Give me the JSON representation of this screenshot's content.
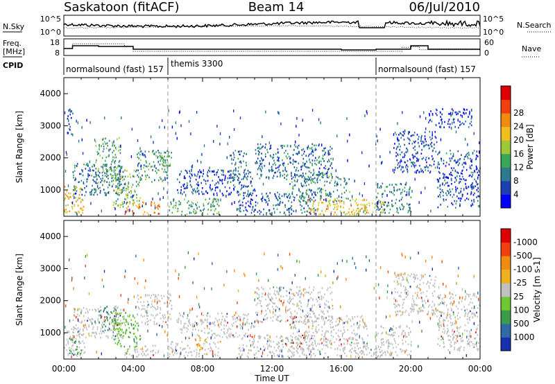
{
  "header": {
    "station": "Saskatoon (fitACF)",
    "beam": "Beam 14",
    "date": "06/Jul/2010"
  },
  "top_panels": {
    "nsky_label": "N.Sky",
    "nsearch_label": "N.Search",
    "nsky_ticks": [
      "10^5",
      "10^0"
    ],
    "nsearch_ticks": [
      "10^5",
      "10^0"
    ],
    "freq_label_1": "Freq.",
    "freq_label_2": "[MHz]",
    "freq_ticks": [
      "18",
      "8"
    ],
    "nave_label": "Nave",
    "nave_ticks": [
      "60",
      "0"
    ],
    "cpid_label": "CPID",
    "cpid_segments": [
      {
        "label": "normalsound (fast) 157",
        "start_hour": 0
      },
      {
        "label": "themis 3300",
        "start_hour": 6
      },
      {
        "label": "normalsound (fast) 157",
        "start_hour": 18
      }
    ],
    "freq_series": [
      [
        0,
        13
      ],
      [
        0.5,
        15
      ],
      [
        2,
        14.5
      ],
      [
        4,
        12.5
      ],
      [
        10,
        12.5
      ],
      [
        16,
        12
      ],
      [
        18,
        12.5
      ],
      [
        20,
        15
      ],
      [
        21,
        12.5
      ],
      [
        24,
        12.5
      ]
    ],
    "nave_series": [
      [
        0,
        30
      ],
      [
        0.5,
        50
      ],
      [
        3.5,
        40
      ],
      [
        4,
        18
      ],
      [
        18,
        18
      ],
      [
        19.5,
        35
      ],
      [
        20,
        38
      ],
      [
        20.5,
        25
      ],
      [
        24,
        25
      ]
    ]
  },
  "chart_data": [
    {
      "type": "heatmap",
      "name": "power",
      "ylabel": "Slant Range [km]",
      "xlabel": "Time UT",
      "xlim": [
        0,
        24
      ],
      "ylim": [
        180,
        4500
      ],
      "x_ticks": [
        "00:00",
        "04:00",
        "08:00",
        "12:00",
        "16:00",
        "20:00",
        "00:00"
      ],
      "y_ticks": [
        1000,
        2000,
        3000,
        4000
      ],
      "colorbar": {
        "label": "Power [dB]",
        "ticks": [
          4,
          8,
          12,
          16,
          20,
          24,
          28
        ],
        "colors": [
          "#0000ff",
          "#1c3fb4",
          "#2c7a8c",
          "#3aa65a",
          "#9ec83a",
          "#f0c020",
          "#f08c10",
          "#f04010",
          "#e00000"
        ]
      },
      "regions": [
        {
          "t": [
            0,
            1.2
          ],
          "r": [
            250,
            1100
          ],
          "v": 22
        },
        {
          "t": [
            0.1,
            0.5
          ],
          "r": [
            2600,
            3500
          ],
          "v": 8
        },
        {
          "t": [
            0.5,
            3.5
          ],
          "r": [
            800,
            1800
          ],
          "v": 10
        },
        {
          "t": [
            1.8,
            3.3
          ],
          "r": [
            1200,
            2600
          ],
          "v": 14
        },
        {
          "t": [
            2.8,
            4.4
          ],
          "r": [
            400,
            1600
          ],
          "v": 16
        },
        {
          "t": [
            3.5,
            5.5
          ],
          "r": [
            200,
            600
          ],
          "v": 25
        },
        {
          "t": [
            4.2,
            6.0
          ],
          "r": [
            1200,
            2200
          ],
          "v": 12
        },
        {
          "t": [
            5.2,
            6.2
          ],
          "r": [
            1700,
            2200
          ],
          "v": 14
        },
        {
          "t": [
            6.0,
            9.0
          ],
          "r": [
            200,
            700
          ],
          "v": 14
        },
        {
          "t": [
            6.5,
            11.0
          ],
          "r": [
            800,
            1600
          ],
          "v": 8
        },
        {
          "t": [
            9.5,
            10.5
          ],
          "r": [
            1300,
            2200
          ],
          "v": 10
        },
        {
          "t": [
            10.0,
            14.5
          ],
          "r": [
            200,
            900
          ],
          "v": 9
        },
        {
          "t": [
            11.0,
            15.5
          ],
          "r": [
            1300,
            2400
          ],
          "v": 10
        },
        {
          "t": [
            13.0,
            16.5
          ],
          "r": [
            600,
            1500
          ],
          "v": 12
        },
        {
          "t": [
            14.0,
            17.5
          ],
          "r": [
            200,
            700
          ],
          "v": 22
        },
        {
          "t": [
            16.5,
            18.5
          ],
          "r": [
            200,
            600
          ],
          "v": 20
        },
        {
          "t": [
            18.0,
            20.0
          ],
          "r": [
            250,
            1200
          ],
          "v": 11
        },
        {
          "t": [
            19.0,
            21.5
          ],
          "r": [
            1500,
            2800
          ],
          "v": 8
        },
        {
          "t": [
            21.5,
            24.0
          ],
          "r": [
            400,
            2200
          ],
          "v": 8
        },
        {
          "t": [
            21.0,
            23.5
          ],
          "r": [
            2900,
            3500
          ],
          "v": 6
        }
      ]
    },
    {
      "type": "heatmap",
      "name": "velocity",
      "ylabel": "Slant Range [km]",
      "xlabel": "Time UT",
      "xlim": [
        0,
        24
      ],
      "ylim": [
        180,
        4500
      ],
      "x_ticks": [
        "00:00",
        "04:00",
        "08:00",
        "12:00",
        "16:00",
        "20:00",
        "00:00"
      ],
      "y_ticks": [
        1000,
        2000,
        3000,
        4000
      ],
      "colorbar": {
        "label": "Velocity [m s-1]",
        "ticks": [
          "1000",
          "500",
          "100",
          "25",
          "-25",
          "-100",
          "-500",
          "-1000"
        ],
        "colors": [
          "#1a2fb0",
          "#2f6aa8",
          "#3a9b4a",
          "#6ec832",
          "#c0c0c0",
          "#f0b020",
          "#f08c10",
          "#f04010",
          "#e00000"
        ]
      },
      "regions": [
        {
          "t": [
            0,
            1.2
          ],
          "r": [
            250,
            1100
          ],
          "v": 0
        },
        {
          "t": [
            0.3,
            1.0
          ],
          "r": [
            300,
            800
          ],
          "v": 180
        },
        {
          "t": [
            0.5,
            3.5
          ],
          "r": [
            800,
            1800
          ],
          "v": 0
        },
        {
          "t": [
            2.0,
            3.0
          ],
          "r": [
            1000,
            1800
          ],
          "v": 300
        },
        {
          "t": [
            2.8,
            4.4
          ],
          "r": [
            400,
            1600
          ],
          "v": 50
        },
        {
          "t": [
            3.5,
            5.5
          ],
          "r": [
            200,
            600
          ],
          "v": 0
        },
        {
          "t": [
            4.2,
            6.2
          ],
          "r": [
            1200,
            2200
          ],
          "v": 0
        },
        {
          "t": [
            6.0,
            9.0
          ],
          "r": [
            200,
            700
          ],
          "v": 0
        },
        {
          "t": [
            7.5,
            8.2
          ],
          "r": [
            400,
            900
          ],
          "v": -100
        },
        {
          "t": [
            6.5,
            11.0
          ],
          "r": [
            800,
            1600
          ],
          "v": 0
        },
        {
          "t": [
            10.0,
            14.5
          ],
          "r": [
            200,
            900
          ],
          "v": 0
        },
        {
          "t": [
            11.0,
            15.5
          ],
          "r": [
            1300,
            2400
          ],
          "v": 0
        },
        {
          "t": [
            13.0,
            17.5
          ],
          "r": [
            200,
            1500
          ],
          "v": 0
        },
        {
          "t": [
            16.5,
            18.5
          ],
          "r": [
            200,
            600
          ],
          "v": 0
        },
        {
          "t": [
            18.0,
            20.0
          ],
          "r": [
            250,
            1200
          ],
          "v": 0
        },
        {
          "t": [
            19.0,
            21.5
          ],
          "r": [
            1500,
            2800
          ],
          "v": 0
        },
        {
          "t": [
            21.5,
            24.0
          ],
          "r": [
            400,
            2200
          ],
          "v": 0
        }
      ]
    }
  ]
}
